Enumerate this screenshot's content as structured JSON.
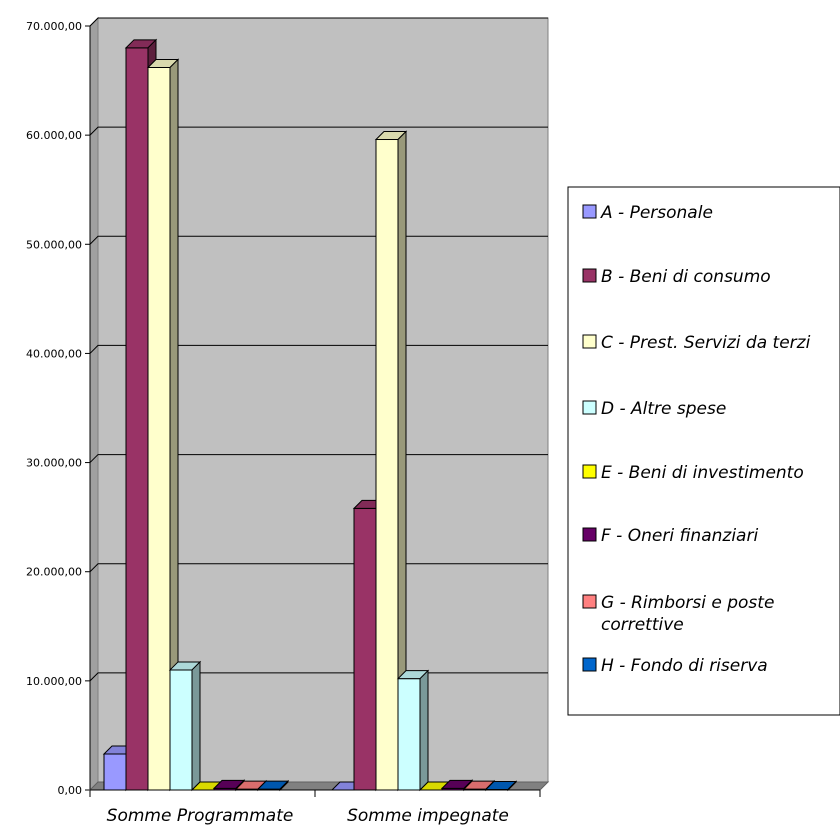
{
  "chart_data": {
    "type": "bar",
    "variant": "3d-clustered",
    "title": "",
    "xlabel": "",
    "ylabel": "",
    "categories": [
      "Somme Programmate",
      "Somme impegnate"
    ],
    "ylim": [
      0,
      70000
    ],
    "yticks": [
      "0,00",
      "10.000,00",
      "20.000,00",
      "30.000,00",
      "40.000,00",
      "50.000,00",
      "60.000,00",
      "70.000,00"
    ],
    "ytick_values": [
      0,
      10000,
      20000,
      30000,
      40000,
      50000,
      60000,
      70000
    ],
    "grid": true,
    "legend_position": "right",
    "series": [
      {
        "name": "A - Personale",
        "color": "#9999ff",
        "values": [
          3300,
          0
        ]
      },
      {
        "name": "B - Beni di consumo",
        "color": "#993366",
        "values": [
          68000,
          25800
        ]
      },
      {
        "name": "C - Prest. Servizi da terzi",
        "color": "#ffffcc",
        "values": [
          66200,
          59600
        ]
      },
      {
        "name": "D - Altre spese",
        "color": "#ccffff",
        "values": [
          11000,
          10200
        ]
      },
      {
        "name": "E - Beni di investimento",
        "color": "#ffff00",
        "values": [
          0,
          0
        ]
      },
      {
        "name": "F - Oneri finanziari",
        "color": "#660066",
        "values": [
          150,
          150
        ]
      },
      {
        "name": "G - Rimborsi e poste correttive",
        "color": "#ff8080",
        "values": [
          80,
          80
        ]
      },
      {
        "name": "H - Fondo di riserva",
        "color": "#0066cc",
        "values": [
          80,
          50
        ]
      }
    ]
  }
}
